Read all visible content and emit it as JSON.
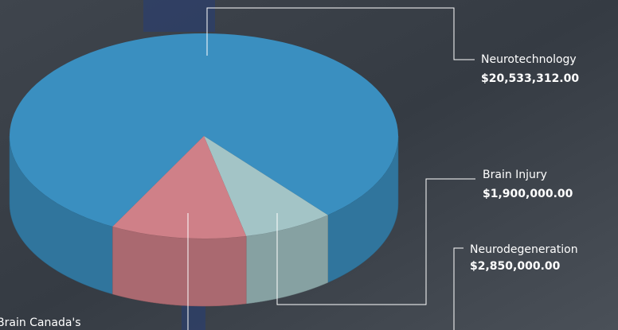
{
  "chart_data": {
    "type": "pie",
    "categories": [
      "Neurotechnology",
      "Brain Injury",
      "Neurodegeneration"
    ],
    "values": [
      20533312,
      1900000,
      2850000
    ],
    "value_labels": [
      "$20,533,312.00",
      "$1,900,000.00",
      "$2,850,000.00"
    ],
    "colors": [
      "#3a8fc0",
      "#a3c4c6",
      "#cf8088"
    ],
    "note": "Brain Canada's"
  }
}
